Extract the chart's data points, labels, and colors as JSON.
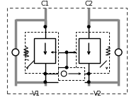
{
  "bg_color": "#ffffff",
  "line_color": "#000000",
  "gray_color": "#888888",
  "label_C1": "C1",
  "label_C2": "C2",
  "label_V1": "V1",
  "label_V2": "V2",
  "fig_width": 1.89,
  "fig_height": 1.44,
  "dpi": 100
}
